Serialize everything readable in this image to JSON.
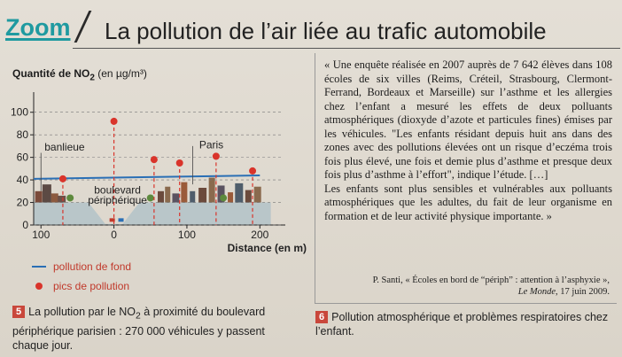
{
  "header": {
    "tag": "Zoom",
    "title": "La pollution de l’air liée au trafic automobile"
  },
  "figure5": {
    "badge": "5",
    "caption_part1": "La pollution par le NO",
    "caption_sub": "2",
    "caption_part2": " à proximité du boulevard périphérique parisien : 270 000 véhicules y passent chaque jour."
  },
  "chart_data": {
    "type": "scatter",
    "ylabel_prefix": "Quantité de NO",
    "ylabel_sub": "2",
    "ylabel_unit": "(en µg/m³)",
    "xlabel": "Distance (en m)",
    "x_tick_labels": [
      "100",
      "0",
      "100",
      "200"
    ],
    "x_tick_values": [
      -100,
      0,
      100,
      200
    ],
    "y_tick_labels": [
      "0",
      "20",
      "40",
      "60",
      "80",
      "100"
    ],
    "ylim": [
      0,
      110
    ],
    "xlim": [
      -110,
      230
    ],
    "background_pollution": {
      "name": "pollution de fond",
      "x": [
        -110,
        200
      ],
      "y": [
        41,
        44
      ],
      "color": "#2a6fb5"
    },
    "peaks": {
      "name": "pics de pollution",
      "color": "#d9342b",
      "x": [
        -70,
        0,
        55,
        90,
        140,
        190
      ],
      "y": [
        41,
        92,
        58,
        55,
        61,
        48
      ]
    },
    "annotations": [
      "banlieue",
      "boulevard périphérique",
      "Paris"
    ]
  },
  "legend": {
    "line_label": "pollution de fond",
    "dot_label": "pics de pollution"
  },
  "document6": {
    "quote": "« Une enquête réalisée en 2007 auprès de 7 642 élèves dans 108 écoles de six villes (Reims, Créteil, Strasbourg, Clermont-Ferrand, Bordeaux et Marseille) sur l’asthme et les allergies chez l’enfant a mesuré les effets de deux polluants atmosphériques (dioxyde d’azote et particules fines) émises par les véhicules. \"Les enfants résidant depuis huit ans dans des zones avec des pollutions élevées ont un risque d’eczéma trois fois plus élevé, une fois et demie plus d’asthme et presque deux fois plus d’asthme à l’effort\", indique l’étude. […]",
    "quote2": "Les enfants sont plus sensibles et vulnérables aux polluants atmosphériques que les adultes, du fait de leur organisme en formation et de leur activité physique importante. »",
    "source_line1": "P. Santi, « Écoles en bord de “périph” : attention à l’asphyxie »,",
    "source_newspaper": "Le Monde",
    "source_date": ", 17 juin 2009.",
    "badge": "6",
    "caption": "Pollution atmosphérique et problèmes respiratoires chez l’enfant."
  }
}
